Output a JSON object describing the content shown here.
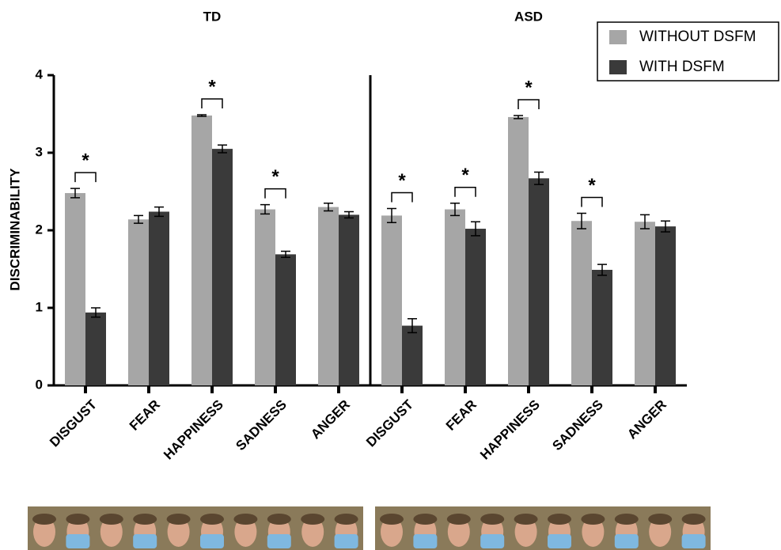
{
  "chart_data": {
    "type": "bar",
    "y_label": "DISCRIMINABILITY",
    "ylim": [
      0,
      4
    ],
    "yticks": [
      0,
      1,
      2,
      3,
      4
    ],
    "legend": "top-right",
    "significance_marker": "*",
    "series": [
      {
        "name": "WITHOUT DSFM",
        "color": "#a6a6a6"
      },
      {
        "name": "WITH DSFM",
        "color": "#3a3a3a"
      }
    ],
    "panels": [
      {
        "title": "TD",
        "categories": [
          "DISGUST",
          "FEAR",
          "HAPPINESS",
          "SADNESS",
          "ANGER"
        ],
        "values": [
          [
            2.48,
            2.14,
            3.48,
            2.27,
            2.3
          ],
          [
            0.94,
            2.24,
            3.05,
            1.69,
            2.2
          ]
        ],
        "errors": [
          [
            0.06,
            0.05,
            0.01,
            0.06,
            0.05
          ],
          [
            0.06,
            0.06,
            0.05,
            0.04,
            0.04
          ]
        ],
        "significant": [
          true,
          false,
          true,
          true,
          false
        ]
      },
      {
        "title": "ASD",
        "categories": [
          "DISGUST",
          "FEAR",
          "HAPPINESS",
          "SADNESS",
          "ANGER"
        ],
        "values": [
          [
            2.19,
            2.27,
            3.46,
            2.12,
            2.11
          ],
          [
            0.77,
            2.02,
            2.67,
            1.49,
            2.05
          ]
        ],
        "errors": [
          [
            0.09,
            0.08,
            0.02,
            0.1,
            0.09
          ],
          [
            0.09,
            0.09,
            0.08,
            0.07,
            0.07
          ]
        ],
        "significant": [
          true,
          true,
          true,
          true,
          false
        ]
      }
    ]
  }
}
